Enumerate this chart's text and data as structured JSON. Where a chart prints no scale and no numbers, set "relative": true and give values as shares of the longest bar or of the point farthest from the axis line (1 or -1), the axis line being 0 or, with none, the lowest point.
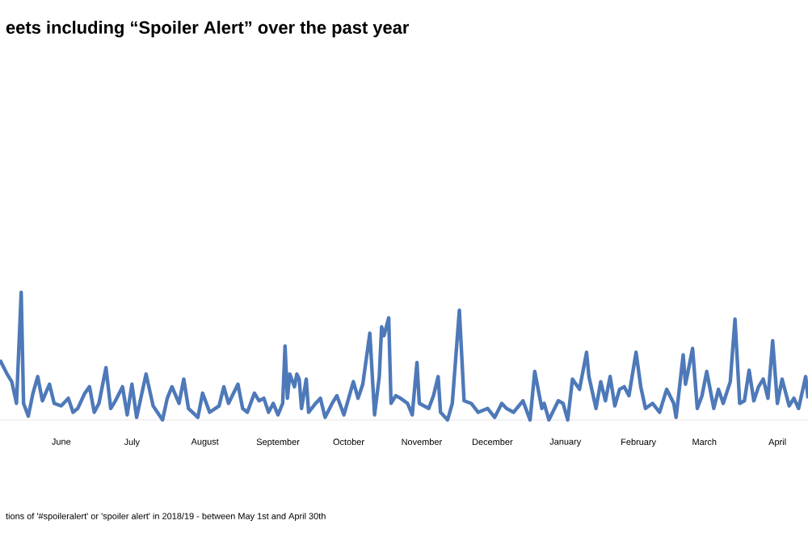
{
  "chart_data": {
    "type": "line",
    "relative": true,
    "title": "eets including “Spoiler Alert” over the past year",
    "annotations": [
      "tions of '#spoileralert' or 'spoiler alert' in 2018/19 - between May 1st and April 30th"
    ],
    "color": "#4e79b9",
    "xlim": [
      "2018-05-20",
      "2019-04-28"
    ],
    "xticks": [
      {
        "value": "2018-06-15",
        "label": "June"
      },
      {
        "value": "2018-07-15",
        "label": "July"
      },
      {
        "value": "2018-08-15",
        "label": "August"
      },
      {
        "value": "2018-09-15",
        "label": "September"
      },
      {
        "value": "2018-10-15",
        "label": "October"
      },
      {
        "value": "2018-11-15",
        "label": "November"
      },
      {
        "value": "2018-12-15",
        "label": "December"
      },
      {
        "value": "2019-01-15",
        "label": "January"
      },
      {
        "value": "2019-02-15",
        "label": "February"
      },
      {
        "value": "2019-03-15",
        "label": "March"
      },
      {
        "value": "2019-04-15",
        "label": "April"
      }
    ],
    "x": [
      "2018-05-20",
      "2018-05-23",
      "2018-05-25",
      "2018-05-27",
      "2018-05-29",
      "2018-05-30",
      "2018-06-01",
      "2018-06-03",
      "2018-06-05",
      "2018-06-07",
      "2018-06-10",
      "2018-06-12",
      "2018-06-15",
      "2018-06-18",
      "2018-06-20",
      "2018-06-22",
      "2018-06-25",
      "2018-06-27",
      "2018-06-29",
      "2018-07-01",
      "2018-07-04",
      "2018-07-06",
      "2018-07-08",
      "2018-07-11",
      "2018-07-13",
      "2018-07-15",
      "2018-07-17",
      "2018-07-21",
      "2018-07-24",
      "2018-07-28",
      "2018-07-30",
      "2018-08-01",
      "2018-08-04",
      "2018-08-06",
      "2018-08-08",
      "2018-08-12",
      "2018-08-14",
      "2018-08-17",
      "2018-08-21",
      "2018-08-23",
      "2018-08-25",
      "2018-08-29",
      "2018-08-31",
      "2018-09-02",
      "2018-09-05",
      "2018-09-07",
      "2018-09-09",
      "2018-09-11",
      "2018-09-13",
      "2018-09-15",
      "2018-09-17",
      "2018-09-18",
      "2018-09-19",
      "2018-09-20",
      "2018-09-22",
      "2018-09-23",
      "2018-09-24",
      "2018-09-25",
      "2018-09-27",
      "2018-09-28",
      "2018-10-01",
      "2018-10-03",
      "2018-10-05",
      "2018-10-08",
      "2018-10-10",
      "2018-10-13",
      "2018-10-17",
      "2018-10-19",
      "2018-10-21",
      "2018-10-24",
      "2018-10-26",
      "2018-10-28",
      "2018-10-29",
      "2018-10-30",
      "2018-11-01",
      "2018-11-02",
      "2018-11-04",
      "2018-11-06",
      "2018-11-09",
      "2018-11-11",
      "2018-11-13",
      "2018-11-14",
      "2018-11-18",
      "2018-11-20",
      "2018-11-22",
      "2018-11-23",
      "2018-11-26",
      "2018-11-28",
      "2018-12-01",
      "2018-12-03",
      "2018-12-06",
      "2018-12-09",
      "2018-12-13",
      "2018-12-16",
      "2018-12-19",
      "2018-12-21",
      "2018-12-24",
      "2018-12-28",
      "2018-12-31",
      "2019-01-02",
      "2019-01-05",
      "2019-01-06",
      "2019-01-08",
      "2019-01-12",
      "2019-01-14",
      "2019-01-16",
      "2019-01-18",
      "2019-01-21",
      "2019-01-24",
      "2019-01-25",
      "2019-01-28",
      "2019-01-30",
      "2019-02-01",
      "2019-02-03",
      "2019-02-05",
      "2019-02-07",
      "2019-02-09",
      "2019-02-11",
      "2019-02-14",
      "2019-02-16",
      "2019-02-18",
      "2019-02-21",
      "2019-02-24",
      "2019-02-27",
      "2019-03-02",
      "2019-03-03",
      "2019-03-06",
      "2019-03-07",
      "2019-03-10",
      "2019-03-12",
      "2019-03-14",
      "2019-03-16",
      "2019-03-19",
      "2019-03-21",
      "2019-03-23",
      "2019-03-26",
      "2019-03-28",
      "2019-03-30",
      "2019-04-01",
      "2019-04-03",
      "2019-04-05",
      "2019-04-07",
      "2019-04-09",
      "2019-04-11",
      "2019-04-13",
      "2019-04-15",
      "2019-04-17",
      "2019-04-20",
      "2019-04-22",
      "2019-04-24",
      "2019-04-27",
      "2019-04-28"
    ],
    "values": [
      0.47,
      0.36,
      0.3,
      0.13,
      1.0,
      0.13,
      0.03,
      0.21,
      0.34,
      0.15,
      0.28,
      0.13,
      0.11,
      0.17,
      0.06,
      0.09,
      0.21,
      0.26,
      0.06,
      0.13,
      0.41,
      0.09,
      0.15,
      0.26,
      0.04,
      0.28,
      0.02,
      0.36,
      0.11,
      0.0,
      0.17,
      0.26,
      0.13,
      0.32,
      0.09,
      0.02,
      0.21,
      0.06,
      0.11,
      0.26,
      0.13,
      0.28,
      0.09,
      0.06,
      0.21,
      0.15,
      0.17,
      0.06,
      0.13,
      0.04,
      0.13,
      0.58,
      0.17,
      0.36,
      0.26,
      0.36,
      0.32,
      0.09,
      0.32,
      0.06,
      0.13,
      0.17,
      0.02,
      0.13,
      0.19,
      0.04,
      0.3,
      0.17,
      0.28,
      0.68,
      0.04,
      0.34,
      0.73,
      0.66,
      0.8,
      0.13,
      0.19,
      0.17,
      0.13,
      0.04,
      0.45,
      0.13,
      0.09,
      0.19,
      0.34,
      0.06,
      0.0,
      0.13,
      0.86,
      0.15,
      0.13,
      0.06,
      0.09,
      0.02,
      0.13,
      0.09,
      0.06,
      0.15,
      0.0,
      0.38,
      0.09,
      0.13,
      0.0,
      0.15,
      0.13,
      0.0,
      0.32,
      0.24,
      0.53,
      0.34,
      0.09,
      0.3,
      0.15,
      0.34,
      0.11,
      0.24,
      0.26,
      0.19,
      0.53,
      0.26,
      0.09,
      0.13,
      0.06,
      0.24,
      0.13,
      0.02,
      0.51,
      0.28,
      0.56,
      0.09,
      0.19,
      0.38,
      0.09,
      0.24,
      0.13,
      0.3,
      0.79,
      0.13,
      0.15,
      0.39,
      0.15,
      0.26,
      0.32,
      0.17,
      0.62,
      0.13,
      0.32,
      0.11,
      0.17,
      0.09,
      0.34,
      0.17
    ]
  }
}
